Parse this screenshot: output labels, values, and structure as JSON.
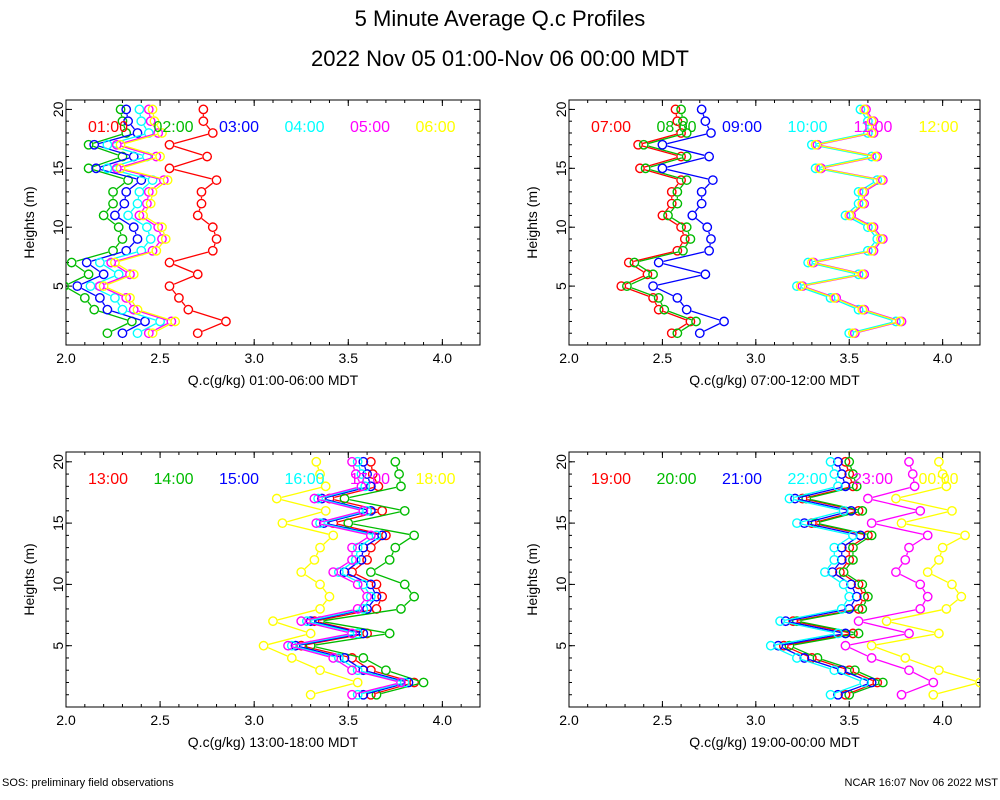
{
  "header": {
    "title": "5 Minute Average Q.c Profiles",
    "subtitle": "2022 Nov 05 01:00-Nov 06 00:00 MDT"
  },
  "footer": {
    "left": "SOS: preliminary field observations",
    "right": "NCAR 16:07 Nov 06 2022 MST"
  },
  "colors": [
    "#ff0000",
    "#00bb00",
    "#0000ff",
    "#00ffff",
    "#ff00ff",
    "#ffff00"
  ],
  "chart_data": [
    {
      "type": "line",
      "ylabel": "Heights (m)",
      "xlabel": "Q.c(g/kg) 01:00-06:00 MDT",
      "xlim": [
        2.0,
        4.2
      ],
      "ylim": [
        0,
        20.8
      ],
      "xticks": [
        "2.0",
        "2.5",
        "3.0",
        "3.5",
        "4.0"
      ],
      "yticks": [
        "5",
        "10",
        "15",
        "20"
      ],
      "heights": [
        1,
        2,
        3,
        4,
        5,
        6,
        7,
        8,
        9,
        10,
        11,
        12,
        13,
        14,
        15,
        16,
        17,
        18,
        19,
        20
      ],
      "series": [
        {
          "name": "01:00",
          "values": [
            2.7,
            2.85,
            2.65,
            2.6,
            2.55,
            2.7,
            2.55,
            2.78,
            2.8,
            2.78,
            2.7,
            2.72,
            2.72,
            2.8,
            2.55,
            2.75,
            2.55,
            2.78,
            2.73,
            2.73
          ]
        },
        {
          "name": "02:00",
          "values": [
            2.22,
            2.35,
            2.15,
            2.1,
            1.99,
            2.12,
            2.03,
            2.25,
            2.3,
            2.28,
            2.2,
            2.25,
            2.25,
            2.33,
            2.12,
            2.3,
            2.12,
            2.32,
            2.3,
            2.29
          ]
        },
        {
          "name": "03:00",
          "values": [
            2.3,
            2.42,
            2.22,
            2.18,
            2.06,
            2.2,
            2.11,
            2.32,
            2.38,
            2.36,
            2.26,
            2.31,
            2.32,
            2.4,
            2.16,
            2.36,
            2.15,
            2.38,
            2.33,
            2.32
          ]
        },
        {
          "name": "04:00",
          "values": [
            2.38,
            2.5,
            2.3,
            2.26,
            2.13,
            2.28,
            2.18,
            2.4,
            2.45,
            2.43,
            2.33,
            2.38,
            2.39,
            2.46,
            2.22,
            2.43,
            2.22,
            2.44,
            2.4,
            2.39
          ]
        },
        {
          "name": "05:00",
          "values": [
            2.44,
            2.56,
            2.36,
            2.32,
            2.18,
            2.34,
            2.24,
            2.46,
            2.51,
            2.49,
            2.39,
            2.43,
            2.44,
            2.52,
            2.27,
            2.48,
            2.27,
            2.49,
            2.45,
            2.44
          ]
        },
        {
          "name": "06:00",
          "values": [
            2.46,
            2.58,
            2.38,
            2.34,
            2.2,
            2.36,
            2.26,
            2.48,
            2.53,
            2.51,
            2.41,
            2.45,
            2.46,
            2.54,
            2.29,
            2.5,
            2.29,
            2.51,
            2.47,
            2.46
          ]
        }
      ]
    },
    {
      "type": "line",
      "ylabel": "Heights (m)",
      "xlabel": "Q.c(g/kg) 07:00-12:00 MDT",
      "xlim": [
        2.0,
        4.2
      ],
      "ylim": [
        0,
        20.8
      ],
      "xticks": [
        "2.0",
        "2.5",
        "3.0",
        "3.5",
        "4.0"
      ],
      "yticks": [
        "5",
        "10",
        "15",
        "20"
      ],
      "heights": [
        1,
        2,
        3,
        4,
        5,
        6,
        7,
        8,
        9,
        10,
        11,
        12,
        13,
        14,
        15,
        16,
        17,
        18,
        19,
        20
      ],
      "series": [
        {
          "name": "07:00",
          "values": [
            2.55,
            2.65,
            2.48,
            2.45,
            2.28,
            2.42,
            2.32,
            2.58,
            2.62,
            2.6,
            2.5,
            2.55,
            2.55,
            2.6,
            2.38,
            2.6,
            2.37,
            2.6,
            2.58,
            2.57
          ]
        },
        {
          "name": "08:00",
          "values": [
            2.58,
            2.68,
            2.51,
            2.48,
            2.31,
            2.45,
            2.35,
            2.61,
            2.65,
            2.63,
            2.53,
            2.58,
            2.58,
            2.63,
            2.41,
            2.63,
            2.4,
            2.63,
            2.61,
            2.6
          ]
        },
        {
          "name": "09:00",
          "values": [
            2.7,
            2.83,
            2.63,
            2.58,
            2.45,
            2.73,
            2.48,
            2.75,
            2.76,
            2.74,
            2.66,
            2.71,
            2.71,
            2.77,
            2.5,
            2.75,
            2.5,
            2.76,
            2.73,
            2.71
          ]
        },
        {
          "name": "10:00",
          "values": [
            3.5,
            3.75,
            3.55,
            3.4,
            3.22,
            3.55,
            3.28,
            3.6,
            3.65,
            3.6,
            3.48,
            3.55,
            3.55,
            3.65,
            3.32,
            3.62,
            3.3,
            3.6,
            3.6,
            3.56
          ]
        },
        {
          "name": "11:00",
          "values": [
            3.53,
            3.78,
            3.58,
            3.43,
            3.25,
            3.58,
            3.31,
            3.63,
            3.68,
            3.63,
            3.51,
            3.58,
            3.58,
            3.68,
            3.35,
            3.65,
            3.33,
            3.63,
            3.63,
            3.59
          ]
        },
        {
          "name": "12:00",
          "values": [
            3.52,
            3.77,
            3.57,
            3.42,
            3.24,
            3.57,
            3.3,
            3.62,
            3.67,
            3.62,
            3.5,
            3.57,
            3.57,
            3.67,
            3.34,
            3.64,
            3.32,
            3.62,
            3.62,
            3.58
          ]
        }
      ]
    },
    {
      "type": "line",
      "ylabel": "Heights (m)",
      "xlabel": "Q.c(g/kg) 13:00-18:00 MDT",
      "xlim": [
        2.0,
        4.2
      ],
      "ylim": [
        0,
        20.8
      ],
      "xticks": [
        "2.0",
        "2.5",
        "3.0",
        "3.5",
        "4.0"
      ],
      "yticks": [
        "5",
        "10",
        "15",
        "20"
      ],
      "heights": [
        1,
        2,
        3,
        4,
        5,
        6,
        7,
        8,
        9,
        10,
        11,
        12,
        13,
        14,
        15,
        16,
        17,
        18,
        19,
        20
      ],
      "series": [
        {
          "name": "13:00",
          "values": [
            3.62,
            3.85,
            3.62,
            3.52,
            3.25,
            3.6,
            3.32,
            3.65,
            3.68,
            3.65,
            3.52,
            3.6,
            3.62,
            3.7,
            3.42,
            3.68,
            3.4,
            3.66,
            3.63,
            3.62
          ]
        },
        {
          "name": "14:00",
          "values": [
            3.65,
            3.9,
            3.7,
            3.58,
            3.3,
            3.72,
            3.35,
            3.78,
            3.85,
            3.8,
            3.62,
            3.72,
            3.75,
            3.85,
            3.5,
            3.8,
            3.48,
            3.78,
            3.77,
            3.75
          ]
        },
        {
          "name": "15:00",
          "values": [
            3.58,
            3.82,
            3.58,
            3.48,
            3.22,
            3.58,
            3.3,
            3.6,
            3.65,
            3.62,
            3.48,
            3.57,
            3.58,
            3.68,
            3.37,
            3.62,
            3.36,
            3.62,
            3.6,
            3.58
          ]
        },
        {
          "name": "16:00",
          "values": [
            3.55,
            3.8,
            3.55,
            3.45,
            3.2,
            3.55,
            3.28,
            3.58,
            3.62,
            3.58,
            3.45,
            3.54,
            3.55,
            3.65,
            3.35,
            3.6,
            3.34,
            3.59,
            3.57,
            3.55
          ]
        },
        {
          "name": "17:00",
          "values": [
            3.52,
            3.78,
            3.52,
            3.42,
            3.18,
            3.52,
            3.25,
            3.55,
            3.6,
            3.55,
            3.42,
            3.52,
            3.52,
            3.62,
            3.33,
            3.58,
            3.32,
            3.57,
            3.54,
            3.52
          ]
        },
        {
          "name": "18:00",
          "values": [
            3.3,
            3.55,
            3.35,
            3.2,
            3.05,
            3.3,
            3.1,
            3.35,
            3.4,
            3.35,
            3.25,
            3.32,
            3.35,
            3.42,
            3.15,
            3.38,
            3.12,
            3.38,
            3.35,
            3.33
          ]
        }
      ]
    },
    {
      "type": "line",
      "ylabel": "Heights (m)",
      "xlabel": "Q.c(g/kg) 19:00-00:00 MDT",
      "xlim": [
        2.0,
        4.2
      ],
      "ylim": [
        0,
        20.8
      ],
      "xticks": [
        "2.0",
        "2.5",
        "3.0",
        "3.5",
        "4.0"
      ],
      "yticks": [
        "5",
        "10",
        "15",
        "20"
      ],
      "heights": [
        1,
        2,
        3,
        4,
        5,
        6,
        7,
        8,
        9,
        10,
        11,
        12,
        13,
        14,
        15,
        16,
        17,
        18,
        19,
        20
      ],
      "series": [
        {
          "name": "19:00",
          "values": [
            3.48,
            3.65,
            3.5,
            3.3,
            3.15,
            3.52,
            3.2,
            3.55,
            3.58,
            3.55,
            3.45,
            3.5,
            3.5,
            3.6,
            3.3,
            3.55,
            3.25,
            3.52,
            3.5,
            3.48
          ]
        },
        {
          "name": "20:00",
          "values": [
            3.5,
            3.68,
            3.53,
            3.33,
            3.18,
            3.55,
            3.22,
            3.57,
            3.6,
            3.57,
            3.47,
            3.52,
            3.52,
            3.62,
            3.32,
            3.57,
            3.27,
            3.54,
            3.52,
            3.5
          ]
        },
        {
          "name": "21:00",
          "values": [
            3.44,
            3.62,
            3.46,
            3.26,
            3.12,
            3.48,
            3.16,
            3.5,
            3.54,
            3.51,
            3.41,
            3.46,
            3.46,
            3.56,
            3.26,
            3.51,
            3.21,
            3.48,
            3.46,
            3.44
          ]
        },
        {
          "name": "22:00",
          "values": [
            3.4,
            3.58,
            3.42,
            3.22,
            3.08,
            3.44,
            3.13,
            3.46,
            3.5,
            3.47,
            3.37,
            3.42,
            3.42,
            3.52,
            3.22,
            3.47,
            3.18,
            3.44,
            3.42,
            3.4
          ]
        },
        {
          "name": "23:00",
          "values": [
            3.78,
            3.95,
            3.82,
            3.62,
            3.48,
            3.82,
            3.55,
            3.88,
            3.92,
            3.88,
            3.75,
            3.8,
            3.82,
            3.92,
            3.62,
            3.88,
            3.6,
            3.85,
            3.84,
            3.82
          ]
        },
        {
          "name": "00:00",
          "values": [
            3.95,
            4.2,
            3.98,
            3.8,
            3.62,
            3.98,
            3.7,
            4.02,
            4.1,
            4.05,
            3.92,
            3.98,
            4.0,
            4.12,
            3.78,
            4.05,
            3.75,
            4.02,
            4.0,
            3.98
          ]
        }
      ]
    }
  ]
}
